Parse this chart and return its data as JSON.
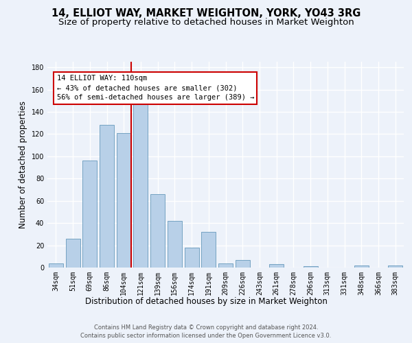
{
  "title1": "14, ELLIOT WAY, MARKET WEIGHTON, YORK, YO43 3RG",
  "title2": "Size of property relative to detached houses in Market Weighton",
  "xlabel": "Distribution of detached houses by size in Market Weighton",
  "ylabel": "Number of detached properties",
  "categories": [
    "34sqm",
    "51sqm",
    "69sqm",
    "86sqm",
    "104sqm",
    "121sqm",
    "139sqm",
    "156sqm",
    "174sqm",
    "191sqm",
    "209sqm",
    "226sqm",
    "243sqm",
    "261sqm",
    "278sqm",
    "296sqm",
    "313sqm",
    "331sqm",
    "348sqm",
    "366sqm",
    "383sqm"
  ],
  "values": [
    4,
    26,
    96,
    128,
    121,
    152,
    66,
    42,
    18,
    32,
    4,
    7,
    0,
    3,
    0,
    1,
    0,
    0,
    2,
    0,
    2
  ],
  "bar_color": "#b8d0e8",
  "bar_edge_color": "#6699bb",
  "vline_color": "#cc0000",
  "annotation_line1": "14 ELLIOT WAY: 110sqm",
  "annotation_line2": "← 43% of detached houses are smaller (302)",
  "annotation_line3": "56% of semi-detached houses are larger (389) →",
  "annotation_box_color": "#ffffff",
  "annotation_box_edge": "#cc0000",
  "ylim": [
    0,
    185
  ],
  "yticks": [
    0,
    20,
    40,
    60,
    80,
    100,
    120,
    140,
    160,
    180
  ],
  "footer1": "Contains HM Land Registry data © Crown copyright and database right 2024.",
  "footer2": "Contains public sector information licensed under the Open Government Licence v3.0.",
  "background_color": "#edf2fa",
  "grid_color": "#ffffff",
  "title1_fontsize": 10.5,
  "title2_fontsize": 9.5,
  "tick_fontsize": 7,
  "ylabel_fontsize": 8.5,
  "xlabel_fontsize": 8.5,
  "annotation_fontsize": 7.5,
  "footer_fontsize": 6
}
